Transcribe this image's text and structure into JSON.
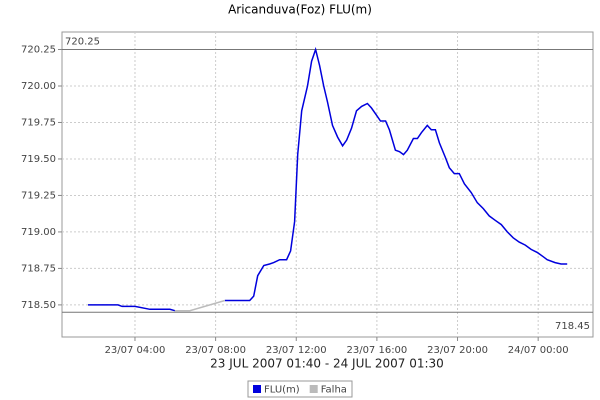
{
  "chart_data": {
    "type": "line",
    "title": "Aricanduva(Foz) FLU(m)",
    "subtitle": "23 JUL 2007 01:40 - 24 JUL 2007 01:30",
    "xlim": [
      0.38,
      26.72
    ],
    "xticks": [
      {
        "value": 4,
        "label": "23/07 04:00"
      },
      {
        "value": 8,
        "label": "23/07 08:00"
      },
      {
        "value": 12,
        "label": "23/07 12:00"
      },
      {
        "value": 16,
        "label": "23/07 16:00"
      },
      {
        "value": 20,
        "label": "23/07 20:00"
      },
      {
        "value": 24,
        "label": "24/07 00:00"
      }
    ],
    "ylim": [
      718.28,
      720.37
    ],
    "yticks": [
      {
        "value": 718.5,
        "label": "718.50"
      },
      718.75,
      {
        "value": 719,
        "label": "719.00"
      },
      719.25,
      {
        "value": 719.5,
        "label": "719.50"
      },
      719.75,
      {
        "value": 720,
        "label": "720.00"
      },
      720.25
    ],
    "grid": true,
    "markers": [
      720.25,
      718.45
    ],
    "legend": "bottom",
    "series": [
      {
        "name": "FLU(m)",
        "color": "#0000dd",
        "x": [
          1.67,
          2.27,
          3.16,
          3.36,
          4.0,
          4.74,
          5.14,
          5.73,
          5.98,
          7.0,
          8.46,
          8.8,
          9.69,
          9.89,
          10.09,
          10.39,
          10.68,
          10.88,
          11.18,
          11.52,
          11.72,
          11.92,
          12.07,
          12.27,
          12.56,
          12.76,
          12.96,
          13.16,
          13.36,
          13.55,
          13.8,
          14.05,
          14.3,
          14.5,
          14.74,
          14.99,
          15.24,
          15.53,
          15.73,
          15.98,
          16.18,
          16.43,
          16.62,
          16.92,
          17.12,
          17.32,
          17.51,
          17.81,
          18.01,
          18.21,
          18.5,
          18.7,
          18.9,
          19.1,
          19.4,
          19.59,
          19.84,
          20.09,
          20.34,
          20.68,
          20.98,
          21.28,
          21.57,
          21.87,
          22.17,
          22.47,
          22.76,
          23.06,
          23.36,
          23.65,
          23.95,
          24.25,
          24.45,
          24.84,
          25.14,
          25.44
        ],
        "values": [
          718.5,
          718.5,
          718.5,
          718.49,
          718.49,
          718.47,
          718.47,
          718.47,
          718.46,
          null,
          718.53,
          718.53,
          718.53,
          718.56,
          718.7,
          718.77,
          718.78,
          718.79,
          718.81,
          718.81,
          718.87,
          719.07,
          719.53,
          719.83,
          720.0,
          720.17,
          720.25,
          720.14,
          720.0,
          719.89,
          719.73,
          719.65,
          719.59,
          719.63,
          719.71,
          719.83,
          719.86,
          719.88,
          719.85,
          719.8,
          719.76,
          719.76,
          719.7,
          719.56,
          719.55,
          719.53,
          719.56,
          719.64,
          719.64,
          719.68,
          719.73,
          719.7,
          719.7,
          719.61,
          719.51,
          719.44,
          719.4,
          719.4,
          719.33,
          719.27,
          719.2,
          719.16,
          719.11,
          719.08,
          719.05,
          719.0,
          718.96,
          718.93,
          718.91,
          718.88,
          718.86,
          718.83,
          718.81,
          718.79,
          718.78,
          718.78
        ]
      },
      {
        "name": "Falha",
        "color": "#bbbbbb",
        "x": [
          5.98,
          6.72,
          8.46
        ],
        "values": [
          718.46,
          718.46,
          718.53
        ]
      }
    ]
  }
}
